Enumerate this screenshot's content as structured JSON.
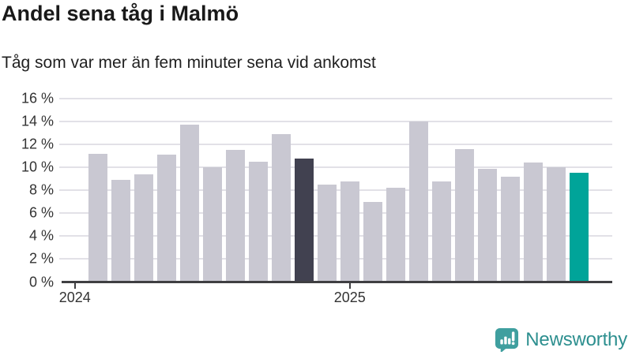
{
  "header": {
    "title": "Andel sena tåg i Malmö",
    "subtitle": "Tåg som var mer än fem minuter sena vid ankomst"
  },
  "chart_data": {
    "type": "bar",
    "title": "Andel sena tåg i Malmö",
    "subtitle": "Tåg som var mer än fem minuter sena vid ankomst",
    "unit": "%",
    "bar_count": 22,
    "values": [
      11.2,
      8.9,
      9.4,
      11.1,
      13.7,
      10.0,
      11.5,
      10.5,
      12.9,
      10.8,
      8.5,
      8.8,
      7.0,
      8.2,
      14.0,
      8.8,
      11.6,
      9.9,
      9.2,
      10.4,
      10.0,
      9.5
    ],
    "highlights": {
      "dark_bar_index": 9,
      "dark_bar_value": 10.8,
      "teal_bar_index": 21,
      "teal_bar_value": 9.5
    },
    "x_axis": {
      "ticks": [
        {
          "label": "2024",
          "slot": 0
        },
        {
          "label": "2025",
          "slot": 12
        }
      ]
    },
    "y_axis": {
      "min": 0,
      "max": 16,
      "step": 2,
      "ticks": [
        {
          "value": 0,
          "label": "0 %"
        },
        {
          "value": 2,
          "label": "2 %"
        },
        {
          "value": 4,
          "label": "4 %"
        },
        {
          "value": 6,
          "label": "6 %"
        },
        {
          "value": 8,
          "label": "8 %"
        },
        {
          "value": 10,
          "label": "10 %"
        },
        {
          "value": 12,
          "label": "12 %"
        },
        {
          "value": 14,
          "label": "14 %"
        },
        {
          "value": 16,
          "label": "16 %"
        }
      ]
    },
    "grid": true,
    "legend": false,
    "colors": {
      "default_bar": "#c9c8d2",
      "dark_bar": "#414150",
      "teal_bar": "#00a499",
      "gridline": "#e2e1e7",
      "axis": "#3f3f42",
      "axis_text": "#333333"
    }
  },
  "footer": {
    "brand": "Newsworthy",
    "logo_icon": "speech-bubble-bar-chart-icon",
    "brand_text_color": "#2d8f8f",
    "brand_icon_color": "#3f9f9f"
  }
}
